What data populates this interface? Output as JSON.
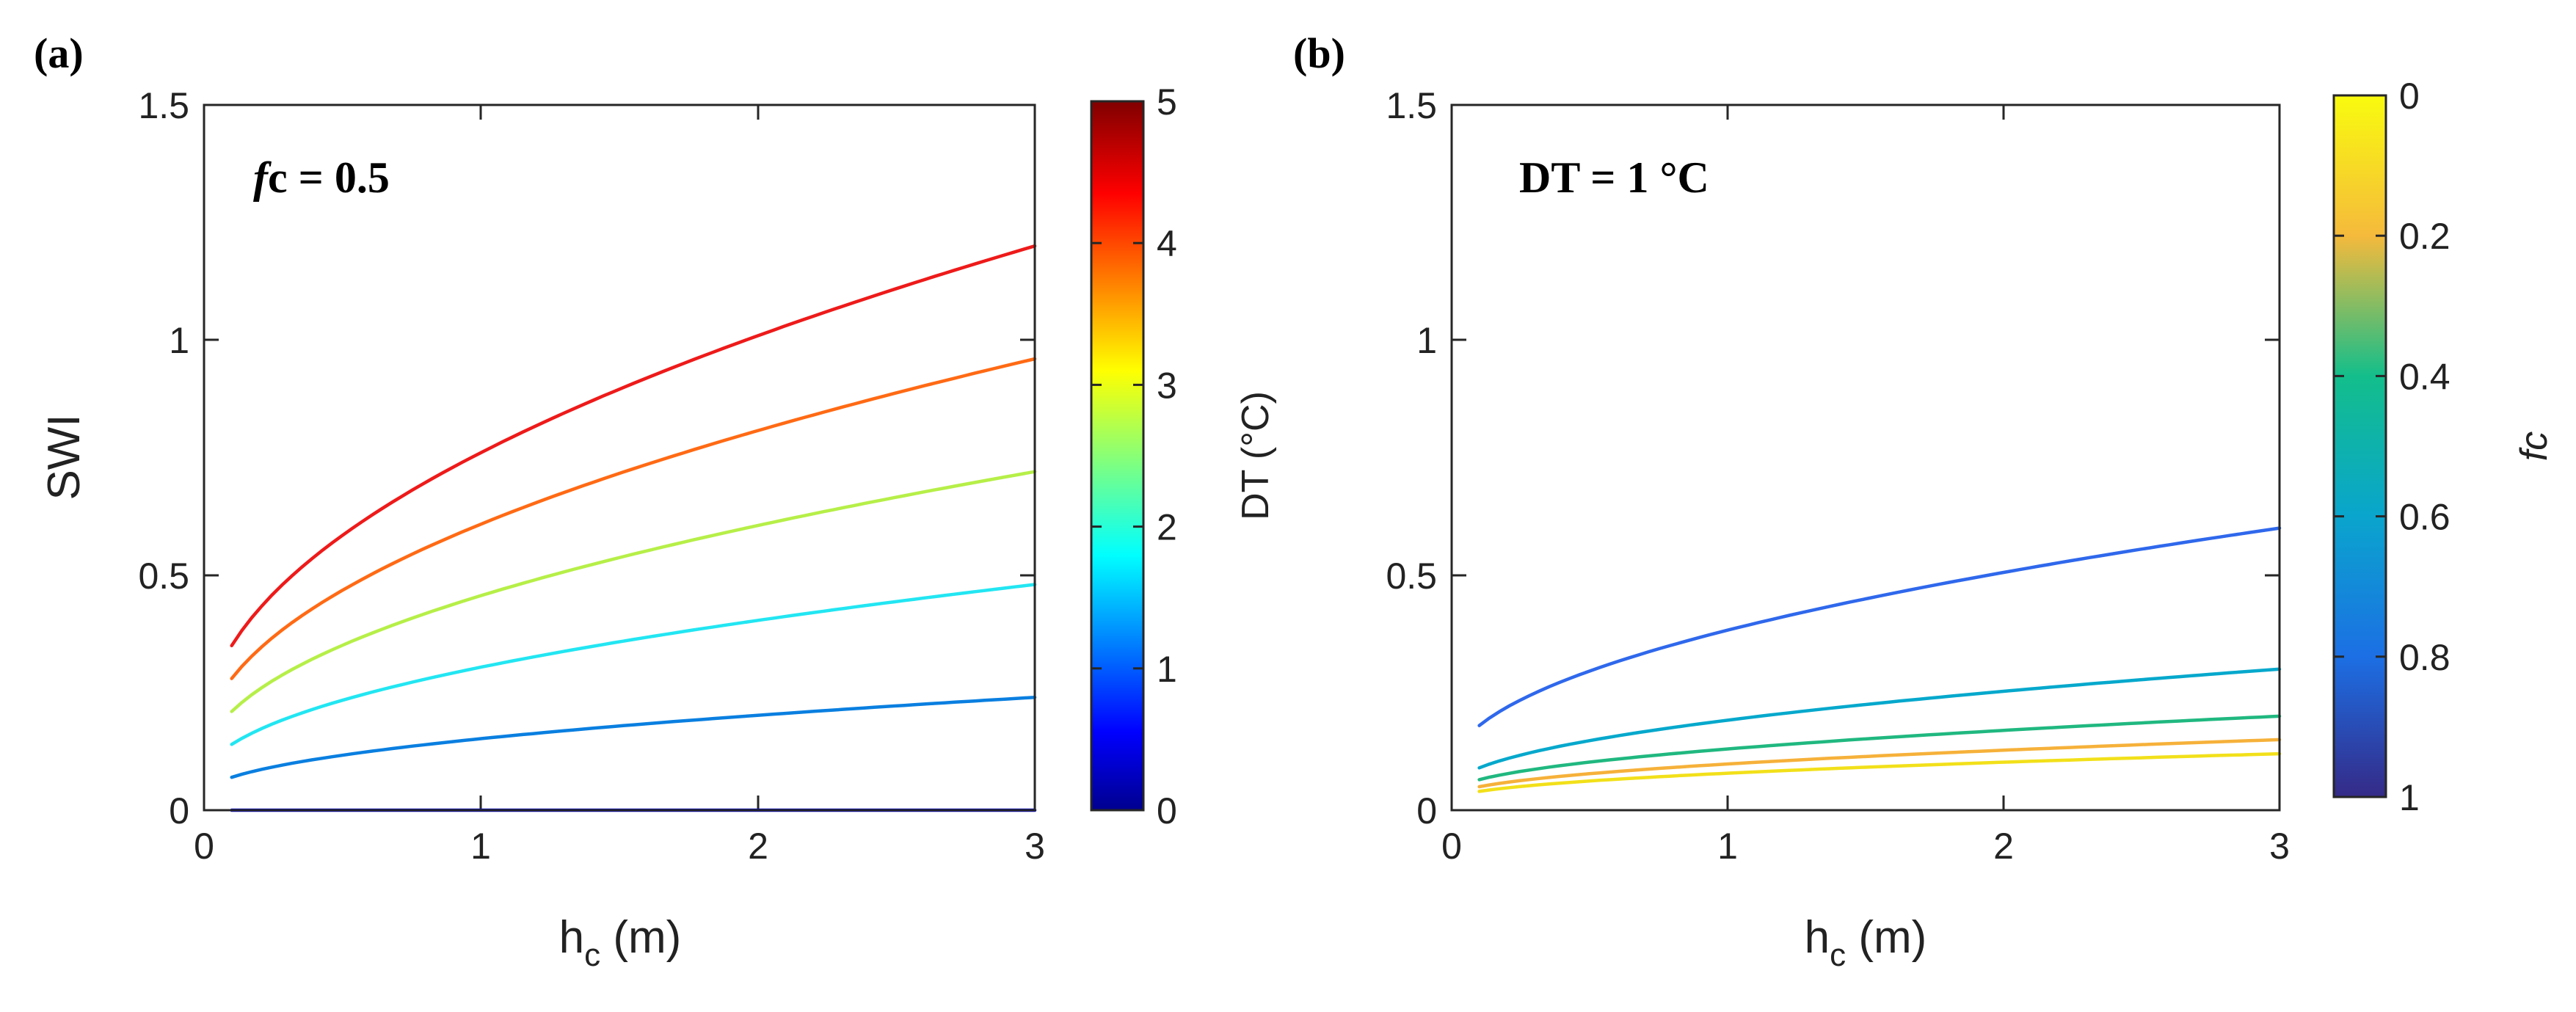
{
  "chart_data": [
    {
      "id": "a",
      "type": "line",
      "panel_label": "(a)",
      "annotation": {
        "var": "f",
        "sub": "c",
        "rest": " = 0.5"
      },
      "xlabel": {
        "main": "h",
        "sub": "c",
        "rest": " (m)"
      },
      "ylabel": "SWI",
      "xlim": [
        0,
        3
      ],
      "ylim": [
        0,
        1.5
      ],
      "xticks": [
        0,
        1,
        2,
        3
      ],
      "yticks": [
        0,
        0.5,
        1,
        1.5
      ],
      "x_start": 0.1,
      "x_end": 3,
      "colorbar": {
        "label": "DT (°C)",
        "range": [
          0,
          5
        ],
        "direction": "normal",
        "ticks": [
          0,
          1,
          2,
          3,
          4,
          5
        ],
        "colormap": "jet"
      },
      "series": [
        {
          "name": "DT = 0 °C",
          "cvalue": 0,
          "color": "#0000cc",
          "y_start": 0.0,
          "y_end": 0.0
        },
        {
          "name": "DT = 1 °C",
          "cvalue": 1,
          "color": "#0a7fe0",
          "y_start": 0.07,
          "y_end": 0.24
        },
        {
          "name": "DT = 2 °C",
          "cvalue": 2,
          "color": "#22e6f2",
          "y_start": 0.14,
          "y_end": 0.48
        },
        {
          "name": "DT = 3 °C",
          "cvalue": 3,
          "color": "#b6ef48",
          "y_start": 0.21,
          "y_end": 0.72
        },
        {
          "name": "DT = 4 °C",
          "cvalue": 4,
          "color": "#ff6a14",
          "y_start": 0.28,
          "y_end": 0.96
        },
        {
          "name": "DT = 5 °C",
          "cvalue": 5,
          "color": "#ee1a1a",
          "y_start": 0.35,
          "y_end": 1.2
        }
      ]
    },
    {
      "id": "b",
      "type": "line",
      "panel_label": "(b)",
      "annotation": {
        "text": "DT = 1 °C"
      },
      "xlabel": {
        "main": "h",
        "sub": "c",
        "rest": " (m)"
      },
      "ylabel": "",
      "xlim": [
        0,
        3
      ],
      "ylim": [
        0,
        1.5
      ],
      "xticks": [
        0,
        1,
        2,
        3
      ],
      "yticks": [
        0,
        0.5,
        1,
        1.5
      ],
      "x_start": 0.1,
      "x_end": 3,
      "colorbar": {
        "label": "fc",
        "range": [
          0,
          1
        ],
        "direction": "reversed",
        "ticks": [
          0,
          0.2,
          0.4,
          0.6,
          0.8,
          1
        ],
        "colormap": "parula"
      },
      "series": [
        {
          "name": "fc = 0",
          "cvalue": 0,
          "color": "#f2e01a",
          "y_start": 0.04,
          "y_end": 0.12
        },
        {
          "name": "fc = 0.2",
          "cvalue": 0.2,
          "color": "#f6b13a",
          "y_start": 0.05,
          "y_end": 0.15
        },
        {
          "name": "fc = 0.4",
          "cvalue": 0.4,
          "color": "#20b880",
          "y_start": 0.065,
          "y_end": 0.2
        },
        {
          "name": "fc = 0.6",
          "cvalue": 0.6,
          "color": "#06a8cc",
          "y_start": 0.09,
          "y_end": 0.3
        },
        {
          "name": "fc = 0.8",
          "cvalue": 0.8,
          "color": "#2f68ec",
          "y_start": 0.18,
          "y_end": 0.6
        }
      ]
    }
  ]
}
